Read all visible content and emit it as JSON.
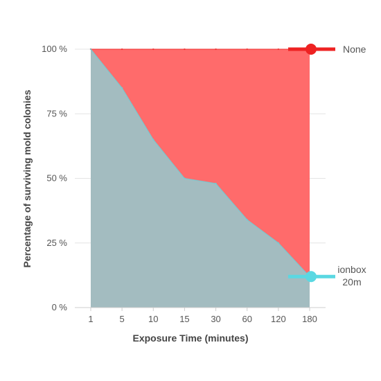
{
  "chart_data": {
    "type": "area",
    "xlabel": "Exposure Time (minutes)",
    "ylabel": "Percentage of surviving mold colonies",
    "categories": [
      "1",
      "5",
      "10",
      "15",
      "30",
      "60",
      "120",
      "180"
    ],
    "ylim": [
      0,
      100
    ],
    "yticks": [
      {
        "value": 0,
        "label": "0 %"
      },
      {
        "value": 25,
        "label": "25 %"
      },
      {
        "value": 50,
        "label": "50 %"
      },
      {
        "value": 75,
        "label": "75 %"
      },
      {
        "value": 100,
        "label": "100 %"
      }
    ],
    "grid": true,
    "legend_placement": "right, inline at line ends",
    "series": [
      {
        "name": "None",
        "values": [
          100,
          100,
          100,
          100,
          100,
          100,
          100,
          100
        ],
        "color": "#ff6b6b",
        "line_color": "#ee2222"
      },
      {
        "name": "Ionbox 20m",
        "label_lines": [
          "ionbox",
          "20m"
        ],
        "values": [
          100,
          85,
          65,
          50,
          48,
          34,
          25,
          12
        ],
        "color": "#a3bcc0",
        "line_color": "#5ad8e2"
      }
    ]
  }
}
